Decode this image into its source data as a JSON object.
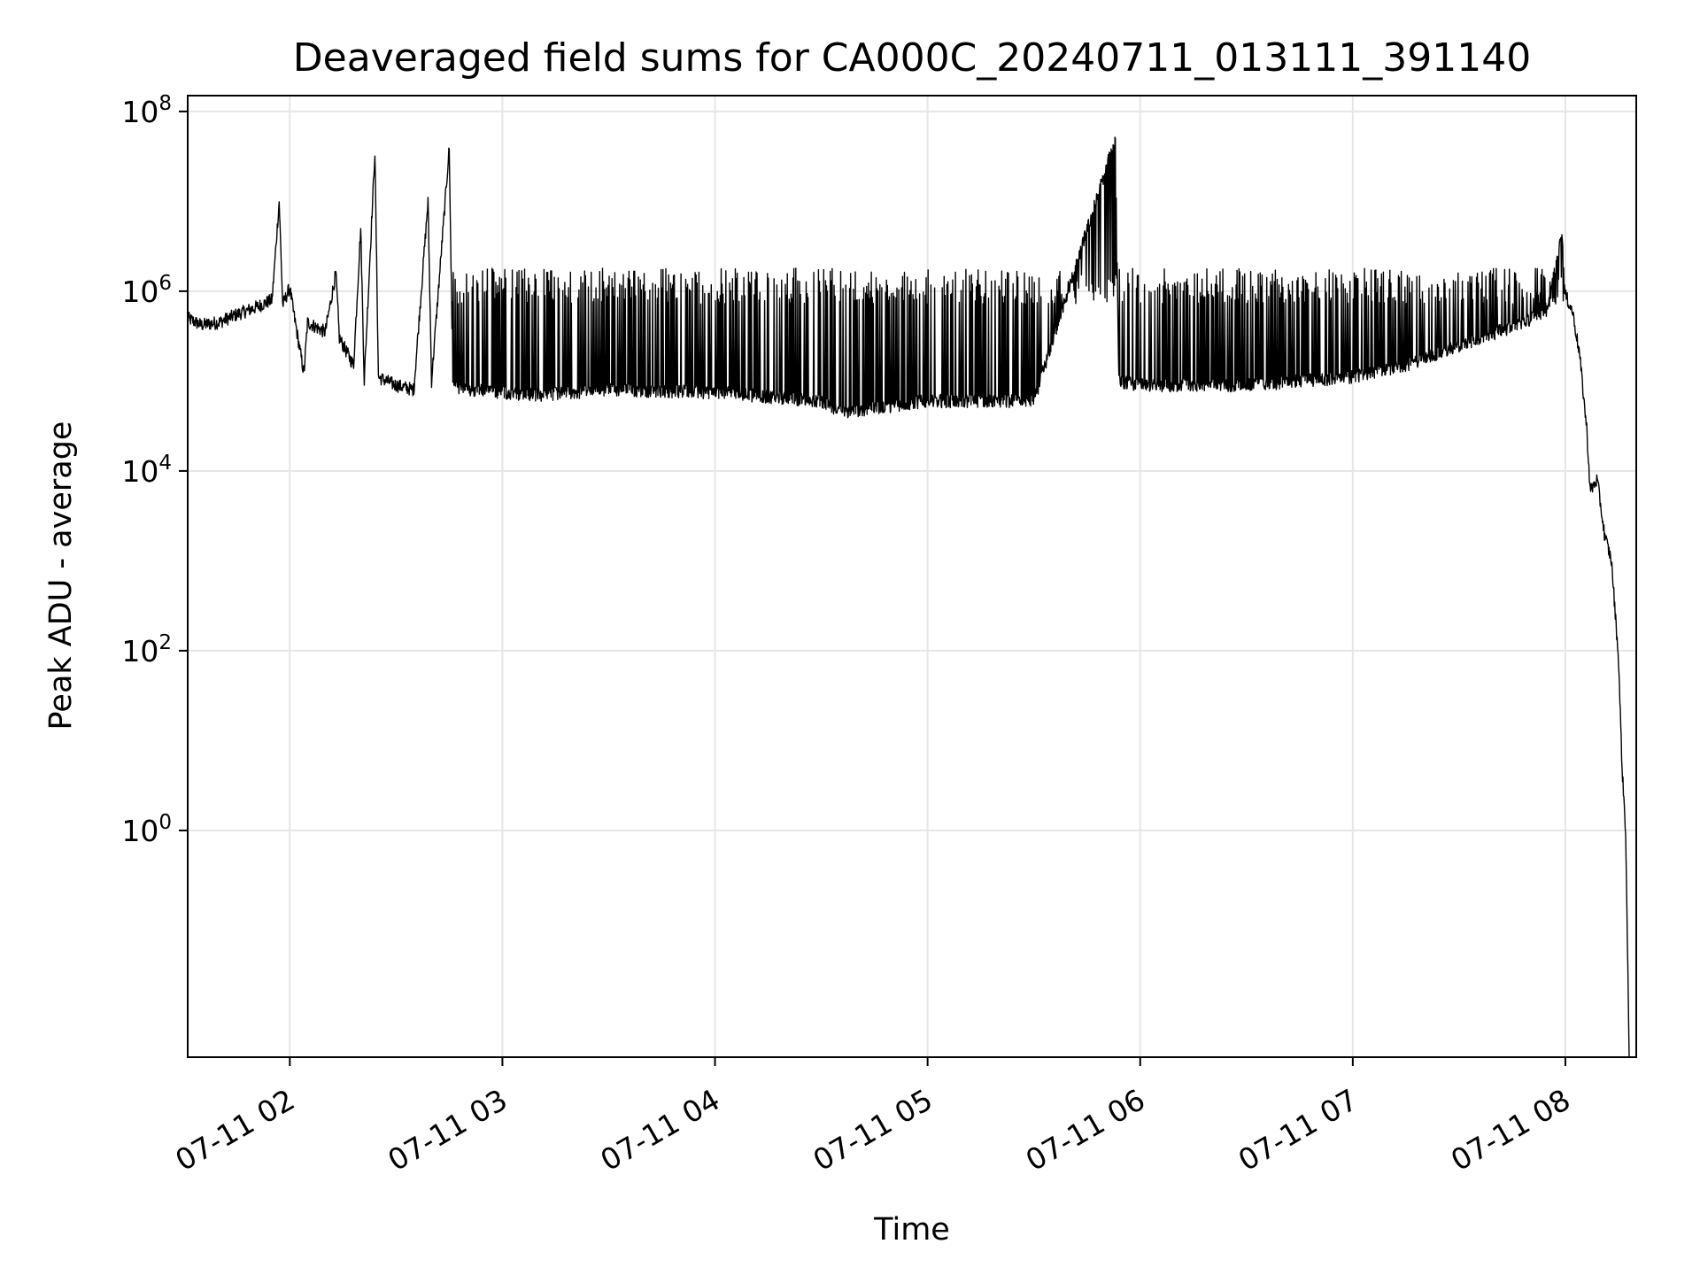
{
  "chart_data": {
    "type": "line",
    "title": "Deaveraged field sums for CA000C_20240711_013111_391140",
    "xlabel": "Time",
    "ylabel": "Peak ADU - average",
    "x_scale": "time",
    "y_scale": "log",
    "xlim": [
      "2024-07-11 01:31:11",
      "2024-07-11 08:20:00"
    ],
    "ylim": [
      0.003,
      150000000
    ],
    "grid": true,
    "line_color": "#000000",
    "grid_color": "#e6e6e6",
    "x_ticks": [
      {
        "t": "2024-07-11 02:00",
        "label": "07-11 02"
      },
      {
        "t": "2024-07-11 03:00",
        "label": "07-11 03"
      },
      {
        "t": "2024-07-11 04:00",
        "label": "07-11 04"
      },
      {
        "t": "2024-07-11 05:00",
        "label": "07-11 05"
      },
      {
        "t": "2024-07-11 06:00",
        "label": "07-11 06"
      },
      {
        "t": "2024-07-11 07:00",
        "label": "07-11 07"
      },
      {
        "t": "2024-07-11 08:00",
        "label": "07-11 08"
      }
    ],
    "y_ticks": [
      {
        "value": 1,
        "base": "10",
        "exp": "0"
      },
      {
        "value": 100,
        "base": "10",
        "exp": "2"
      },
      {
        "value": 10000,
        "base": "10",
        "exp": "4"
      },
      {
        "value": 1000000,
        "base": "10",
        "exp": "6"
      },
      {
        "value": 100000000,
        "base": "10",
        "exp": "8"
      }
    ],
    "series": [
      {
        "points": [
          [
            "2024-07-11 01:31:11",
            500000
          ],
          [
            "2024-07-11 01:35",
            420000
          ],
          [
            "2024-07-11 01:40",
            450000
          ],
          [
            "2024-07-11 01:45",
            550000
          ],
          [
            "2024-07-11 01:50",
            650000
          ],
          [
            "2024-07-11 01:55",
            800000
          ],
          [
            "2024-07-11 01:57",
            10000000
          ],
          [
            "2024-07-11 01:58",
            700000
          ],
          [
            "2024-07-11 02:00",
            1100000
          ],
          [
            "2024-07-11 02:01",
            600000
          ],
          [
            "2024-07-11 02:04",
            120000
          ],
          [
            "2024-07-11 02:05",
            450000
          ],
          [
            "2024-07-11 02:10",
            350000
          ],
          [
            "2024-07-11 02:13",
            1600000
          ],
          [
            "2024-07-11 02:14",
            300000
          ],
          [
            "2024-07-11 02:18",
            150000
          ],
          [
            "2024-07-11 02:20",
            5000000
          ],
          [
            "2024-07-11 02:21",
            100000
          ],
          [
            "2024-07-11 02:24",
            35000000
          ],
          [
            "2024-07-11 02:25",
            110000
          ],
          [
            "2024-07-11 02:30",
            90000
          ],
          [
            "2024-07-11 02:35",
            80000
          ],
          [
            "2024-07-11 02:39",
            10000000
          ],
          [
            "2024-07-11 02:40",
            100000
          ],
          [
            "2024-07-11 02:45",
            40000000
          ],
          [
            "2024-07-11 02:46",
            90000
          ],
          [
            "2024-07-11 02:50",
            80000
          ],
          [
            "2024-07-11 03:00",
            75000
          ],
          [
            "2024-07-11 03:10",
            70000
          ],
          [
            "2024-07-11 03:30",
            80000
          ],
          [
            "2024-07-11 04:00",
            75000
          ],
          [
            "2024-07-11 04:30",
            60000
          ],
          [
            "2024-07-11 04:36",
            45000
          ],
          [
            "2024-07-11 05:00",
            60000
          ],
          [
            "2024-07-11 05:30",
            60000
          ],
          [
            "2024-07-11 05:53",
            50000000
          ],
          [
            "2024-07-11 05:54",
            100000
          ],
          [
            "2024-07-11 06:00",
            90000
          ],
          [
            "2024-07-11 06:30",
            90000
          ],
          [
            "2024-07-11 07:00",
            110000
          ],
          [
            "2024-07-11 07:15",
            150000
          ],
          [
            "2024-07-11 07:30",
            250000
          ],
          [
            "2024-07-11 07:45",
            400000
          ],
          [
            "2024-07-11 07:55",
            600000
          ],
          [
            "2024-07-11 07:59",
            5000000
          ],
          [
            "2024-07-11 08:00",
            900000
          ],
          [
            "2024-07-11 08:02",
            600000
          ],
          [
            "2024-07-11 08:04",
            200000
          ],
          [
            "2024-07-11 08:06",
            30000
          ],
          [
            "2024-07-11 08:07",
            6000
          ],
          [
            "2024-07-11 08:09",
            8000
          ],
          [
            "2024-07-11 08:11",
            2000
          ],
          [
            "2024-07-11 08:13",
            1000
          ],
          [
            "2024-07-11 08:15",
            80
          ],
          [
            "2024-07-11 08:16",
            5
          ],
          [
            "2024-07-11 08:17",
            1
          ],
          [
            "2024-07-11 08:18",
            0.003
          ]
        ]
      }
    ],
    "annotations": {
      "upper_envelope": 1800000,
      "dense_spike_region": [
        "2024-07-11 02:45",
        "2024-07-11 08:00"
      ]
    }
  }
}
